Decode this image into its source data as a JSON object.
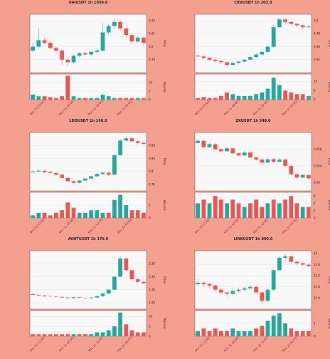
{
  "chart_data": [
    {
      "type": "candlestick",
      "title": "UAIUSDT 1h 1958.0",
      "price_label": "Price",
      "volume_label": "Volume",
      "up_color": "#26a69a",
      "down_color": "#ef5350",
      "grid": true,
      "categories": [
        null,
        null,
        "Nov 10 12:00",
        null,
        null,
        null,
        null,
        "Nov 11 00:00",
        null,
        null,
        null,
        null,
        "Nov 11 12:00",
        null,
        null,
        null,
        null,
        "Nov 12 00:00",
        null,
        null
      ],
      "candles": [
        [
          0.197,
          0.203,
          0.196,
          0.2
        ],
        [
          0.2,
          0.214,
          0.199,
          0.205
        ],
        [
          0.205,
          0.207,
          0.202,
          0.203
        ],
        [
          0.203,
          0.204,
          0.198,
          0.199
        ],
        [
          0.199,
          0.2,
          0.195,
          0.197
        ],
        [
          0.197,
          0.198,
          0.186,
          0.19
        ],
        [
          0.19,
          0.192,
          0.185,
          0.188
        ],
        [
          0.188,
          0.194,
          0.187,
          0.193
        ],
        [
          0.193,
          0.196,
          0.192,
          0.195
        ],
        [
          0.195,
          0.196,
          0.193,
          0.194
        ],
        [
          0.194,
          0.197,
          0.193,
          0.196
        ],
        [
          0.196,
          0.199,
          0.195,
          0.197
        ],
        [
          0.197,
          0.218,
          0.196,
          0.211
        ],
        [
          0.211,
          0.217,
          0.209,
          0.216
        ],
        [
          0.216,
          0.221,
          0.214,
          0.219
        ],
        [
          0.219,
          0.22,
          0.212,
          0.214
        ],
        [
          0.214,
          0.215,
          0.207,
          0.209
        ],
        [
          0.209,
          0.21,
          0.202,
          0.204
        ],
        [
          0.204,
          0.208,
          0.203,
          0.207
        ],
        [
          0.207,
          0.208,
          0.201,
          0.203
        ]
      ],
      "volume": [
        3,
        2,
        2,
        1.5,
        1,
        2,
        14,
        2,
        1,
        1,
        1,
        1,
        3,
        2,
        1,
        1,
        1,
        1,
        1,
        1
      ],
      "ylim": [
        0.18,
        0.225
      ],
      "yticks": [
        0.19,
        0.2,
        0.21,
        0.22
      ],
      "vlim": [
        0,
        15
      ],
      "vticks": [
        0,
        5,
        10
      ]
    },
    {
      "type": "candlestick",
      "title": "CRVUSDT 1h 203.0",
      "price_label": "Price",
      "volume_label": "Volume",
      "up_color": "#26a69a",
      "down_color": "#ef5350",
      "grid": true,
      "categories": [
        null,
        null,
        "Nov 10 12:00",
        null,
        null,
        null,
        null,
        "Nov 11 00:00",
        null,
        null,
        null,
        null,
        "Nov 11 12:00",
        null,
        null,
        null,
        null,
        "Nov 12 00:00",
        null,
        null
      ],
      "candles": [
        [
          0.446,
          0.448,
          0.444,
          0.445
        ],
        [
          0.445,
          0.447,
          0.441,
          0.443
        ],
        [
          0.443,
          0.444,
          0.438,
          0.44
        ],
        [
          0.44,
          0.442,
          0.436,
          0.438
        ],
        [
          0.438,
          0.439,
          0.433,
          0.436
        ],
        [
          0.436,
          0.437,
          0.428,
          0.432
        ],
        [
          0.432,
          0.437,
          0.431,
          0.435
        ],
        [
          0.435,
          0.438,
          0.434,
          0.437
        ],
        [
          0.437,
          0.441,
          0.436,
          0.44
        ],
        [
          0.44,
          0.446,
          0.439,
          0.444
        ],
        [
          0.444,
          0.45,
          0.443,
          0.448
        ],
        [
          0.448,
          0.453,
          0.445,
          0.452
        ],
        [
          0.452,
          0.463,
          0.45,
          0.46
        ],
        [
          0.46,
          0.494,
          0.458,
          0.49
        ],
        [
          0.49,
          0.505,
          0.488,
          0.502
        ],
        [
          0.502,
          0.504,
          0.495,
          0.498
        ],
        [
          0.498,
          0.5,
          0.492,
          0.495
        ],
        [
          0.495,
          0.497,
          0.49,
          0.493
        ],
        [
          0.493,
          0.494,
          0.487,
          0.49
        ],
        [
          0.49,
          0.493,
          0.488,
          0.491
        ]
      ],
      "volume": [
        1,
        1.5,
        1,
        1,
        2,
        4,
        3,
        2,
        2,
        2,
        3,
        4,
        6,
        12,
        8,
        5,
        4,
        3,
        3,
        2
      ],
      "ylim": [
        0.42,
        0.51
      ],
      "yticks": [
        0.44,
        0.46,
        0.48,
        0.5
      ],
      "vlim": [
        0,
        14
      ],
      "vticks": [
        0,
        5,
        10
      ]
    },
    {
      "type": "candlestick",
      "title": "LDOUSDT 1h 168.0",
      "price_label": "Price",
      "volume_label": "Volume",
      "up_color": "#26a69a",
      "down_color": "#ef5350",
      "grid": true,
      "categories": [
        null,
        null,
        "Nov 10 12:00",
        null,
        null,
        null,
        null,
        "Nov 11 00:00",
        null,
        null,
        null,
        null,
        "Nov 11 12:00",
        null,
        null,
        null,
        null,
        "Nov 12 00:00",
        null,
        null
      ],
      "candles": [
        [
          0.798,
          0.805,
          0.796,
          0.8
        ],
        [
          0.8,
          0.806,
          0.798,
          0.802
        ],
        [
          0.802,
          0.804,
          0.795,
          0.798
        ],
        [
          0.798,
          0.8,
          0.792,
          0.795
        ],
        [
          0.795,
          0.797,
          0.787,
          0.79
        ],
        [
          0.79,
          0.792,
          0.777,
          0.78
        ],
        [
          0.78,
          0.782,
          0.766,
          0.77
        ],
        [
          0.77,
          0.773,
          0.76,
          0.765
        ],
        [
          0.765,
          0.775,
          0.763,
          0.772
        ],
        [
          0.772,
          0.78,
          0.77,
          0.778
        ],
        [
          0.778,
          0.787,
          0.776,
          0.785
        ],
        [
          0.785,
          0.795,
          0.783,
          0.792
        ],
        [
          0.792,
          0.799,
          0.789,
          0.796
        ],
        [
          0.796,
          0.798,
          0.786,
          0.79
        ],
        [
          0.79,
          0.855,
          0.788,
          0.85
        ],
        [
          0.85,
          0.9,
          0.848,
          0.895
        ],
        [
          0.895,
          0.908,
          0.89,
          0.902
        ],
        [
          0.902,
          0.905,
          0.89,
          0.893
        ],
        [
          0.893,
          0.897,
          0.884,
          0.888
        ],
        [
          0.888,
          0.892,
          0.882,
          0.885
        ]
      ],
      "volume": [
        1,
        2,
        2,
        1,
        2,
        3,
        6,
        4,
        2,
        2,
        3,
        3,
        2,
        2,
        7,
        9,
        5,
        3,
        3,
        2
      ],
      "ylim": [
        0.74,
        0.92
      ],
      "yticks": [
        0.76,
        0.8,
        0.84,
        0.88
      ],
      "vlim": [
        0,
        10
      ],
      "vticks": [
        0,
        5
      ]
    },
    {
      "type": "candlestick",
      "title": "ZKUSDT 1h 548.0",
      "price_label": "Price",
      "volume_label": "Volume",
      "up_color": "#26a69a",
      "down_color": "#ef5350",
      "grid": true,
      "categories": [
        null,
        null,
        "Nov 10 12:00",
        null,
        null,
        null,
        null,
        "Nov 11 00:00",
        null,
        null,
        null,
        null,
        "Nov 11 12:00",
        null,
        null,
        null,
        null,
        "Nov 12 00:00",
        null,
        null
      ],
      "candles": [
        [
          0.0595,
          0.0605,
          0.0593,
          0.06
        ],
        [
          0.06,
          0.0602,
          0.0582,
          0.0585
        ],
        [
          0.0585,
          0.0596,
          0.0583,
          0.0592
        ],
        [
          0.0592,
          0.0594,
          0.0577,
          0.058
        ],
        [
          0.058,
          0.0583,
          0.0572,
          0.0575
        ],
        [
          0.0575,
          0.0586,
          0.0574,
          0.0582
        ],
        [
          0.0582,
          0.0584,
          0.0567,
          0.057
        ],
        [
          0.057,
          0.0573,
          0.0562,
          0.0565
        ],
        [
          0.0565,
          0.0576,
          0.0564,
          0.0572
        ],
        [
          0.0572,
          0.0574,
          0.0557,
          0.056
        ],
        [
          0.056,
          0.0563,
          0.0552,
          0.0555
        ],
        [
          0.0555,
          0.0558,
          0.0545,
          0.0548
        ],
        [
          0.0548,
          0.056,
          0.0547,
          0.0556
        ],
        [
          0.0556,
          0.0558,
          0.0547,
          0.055
        ],
        [
          0.055,
          0.0559,
          0.0549,
          0.0555
        ],
        [
          0.0555,
          0.0557,
          0.0537,
          0.054
        ],
        [
          0.054,
          0.0542,
          0.0517,
          0.052
        ],
        [
          0.052,
          0.0523,
          0.0508,
          0.0512
        ],
        [
          0.0512,
          0.0521,
          0.051,
          0.0518
        ],
        [
          0.0518,
          0.052,
          0.0507,
          0.051
        ]
      ],
      "volume": [
        4,
        5,
        4,
        6,
        5,
        4,
        5,
        4,
        3,
        4,
        5,
        3,
        4,
        5,
        4,
        5,
        6,
        4,
        3,
        3
      ],
      "ylim": [
        0.048,
        0.062
      ],
      "yticks": [
        0.05,
        0.054,
        0.058
      ],
      "vlim": [
        0,
        7
      ],
      "vticks": [
        0,
        2,
        4,
        6
      ]
    },
    {
      "type": "candlestick",
      "title": "AVNTUSDT 1h 176.0",
      "price_label": "Price",
      "volume_label": "Volume",
      "up_color": "#26a69a",
      "down_color": "#ef5350",
      "grid": true,
      "categories": [
        null,
        null,
        "Nov 10 12:00",
        null,
        null,
        null,
        null,
        "Nov 11 00:00",
        null,
        null,
        null,
        null,
        "Nov 11 12:00",
        null,
        null,
        null,
        null,
        "Nov 12 00:00",
        null,
        null
      ],
      "candles": [
        [
          1.065,
          1.07,
          1.055,
          1.06
        ],
        [
          1.06,
          1.062,
          1.05,
          1.055
        ],
        [
          1.055,
          1.058,
          1.045,
          1.05
        ],
        [
          1.05,
          1.053,
          1.042,
          1.048
        ],
        [
          1.048,
          1.05,
          1.04,
          1.045
        ],
        [
          1.045,
          1.048,
          1.035,
          1.04
        ],
        [
          1.04,
          1.042,
          1.028,
          1.035
        ],
        [
          1.035,
          1.045,
          1.033,
          1.042
        ],
        [
          1.042,
          1.044,
          1.033,
          1.038
        ],
        [
          1.038,
          1.04,
          1.03,
          1.035
        ],
        [
          1.035,
          1.045,
          1.033,
          1.04
        ],
        [
          1.04,
          1.055,
          1.038,
          1.05
        ],
        [
          1.05,
          1.075,
          1.048,
          1.07
        ],
        [
          1.07,
          1.105,
          1.068,
          1.1
        ],
        [
          1.1,
          1.21,
          1.095,
          1.2
        ],
        [
          1.2,
          1.36,
          1.195,
          1.34
        ],
        [
          1.34,
          1.345,
          1.24,
          1.25
        ],
        [
          1.25,
          1.26,
          1.17,
          1.18
        ],
        [
          1.18,
          1.19,
          1.15,
          1.16
        ],
        [
          1.16,
          1.17,
          1.14,
          1.15
        ]
      ],
      "volume": [
        1,
        1,
        1,
        1,
        1,
        1,
        1,
        1,
        1,
        1,
        1,
        2,
        2,
        3,
        5,
        12,
        6,
        3,
        2,
        2
      ],
      "ylim": [
        0.95,
        1.4
      ],
      "yticks": [
        {
          "value": 1,
          "label": "1.00"
        },
        {
          "value": 1.1,
          "label": "1.10"
        },
        {
          "value": 1.2,
          "label": "1.20"
        },
        {
          "value": 1.3,
          "label": "1.30"
        }
      ],
      "vlim": [
        0,
        13
      ],
      "vticks": [
        0,
        5,
        10
      ]
    },
    {
      "type": "candlestick",
      "title": "LINKUSDT 1h 890.0",
      "price_label": "Price",
      "volume_label": "Volume",
      "up_color": "#26a69a",
      "down_color": "#ef5350",
      "grid": true,
      "categories": [
        null,
        null,
        "Nov 10 12:00",
        null,
        null,
        null,
        null,
        "Nov 11 00:00",
        null,
        null,
        null,
        null,
        "Nov 11 12:00",
        null,
        null,
        null,
        null,
        "Nov 12 00:00",
        null,
        null
      ],
      "candles": [
        [
          22.9,
          23.1,
          22.85,
          22.95
        ],
        [
          22.95,
          23.0,
          22.8,
          22.9
        ],
        [
          22.9,
          22.95,
          22.75,
          22.85
        ],
        [
          22.85,
          22.88,
          22.62,
          22.7
        ],
        [
          22.7,
          22.75,
          22.52,
          22.6
        ],
        [
          22.6,
          22.65,
          22.45,
          22.55
        ],
        [
          22.55,
          22.7,
          22.5,
          22.65
        ],
        [
          22.65,
          22.78,
          22.6,
          22.7
        ],
        [
          22.7,
          22.82,
          22.65,
          22.75
        ],
        [
          22.75,
          22.9,
          22.7,
          22.8
        ],
        [
          22.8,
          22.85,
          22.55,
          22.6
        ],
        [
          22.6,
          22.65,
          22.2,
          22.3
        ],
        [
          22.3,
          22.75,
          22.25,
          22.7
        ],
        [
          22.7,
          23.45,
          22.65,
          23.4
        ],
        [
          23.4,
          23.9,
          23.35,
          23.85
        ],
        [
          23.85,
          23.98,
          23.75,
          23.9
        ],
        [
          23.9,
          23.92,
          23.65,
          23.7
        ],
        [
          23.7,
          23.75,
          23.58,
          23.65
        ],
        [
          23.65,
          23.7,
          23.55,
          23.6
        ],
        [
          23.6,
          23.65,
          23.48,
          23.55
        ]
      ],
      "volume": [
        2,
        3,
        2,
        3,
        2,
        2,
        3,
        2,
        2,
        2,
        3,
        4,
        6,
        8,
        9,
        5,
        3,
        2,
        2,
        2
      ],
      "ylim": [
        22,
        24.1
      ],
      "yticks": [
        22.4,
        22.8,
        23.2,
        23.6,
        24
      ],
      "vlim": [
        0,
        10
      ],
      "vticks": [
        0,
        5
      ]
    }
  ]
}
